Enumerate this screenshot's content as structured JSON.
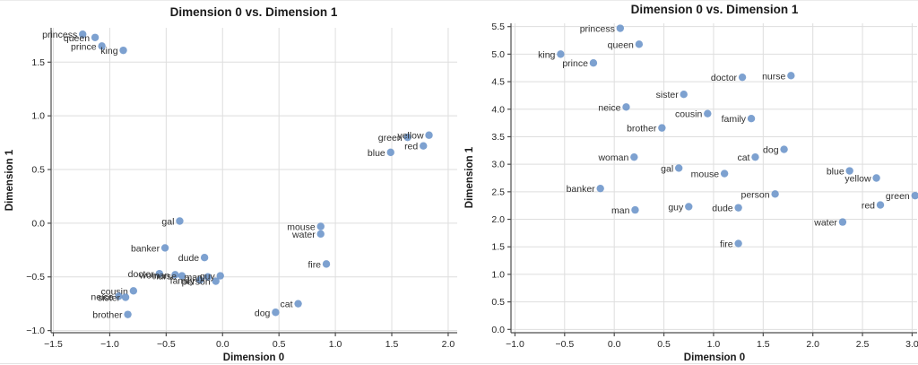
{
  "figure": {
    "background": "#ffffff",
    "description": "Two scatter plots of word embeddings projected onto two dimensions"
  },
  "chart_data": [
    {
      "type": "scatter",
      "title": "Dimension 0 vs. Dimension 1",
      "xlabel": "Dimension 0",
      "ylabel": "Dimension 1",
      "xlim": [
        -1.52,
        2.08
      ],
      "ylim": [
        -1.02,
        1.82
      ],
      "xticks": [
        -1.5,
        -1.0,
        -0.5,
        0.0,
        0.5,
        1.0,
        1.5,
        2.0
      ],
      "yticks": [
        -1.0,
        -0.5,
        0.0,
        0.5,
        1.0,
        1.5
      ],
      "grid": true,
      "legend_position": "none",
      "marker_color": "#6b94c9",
      "grid_color": "#dedede",
      "spine_color": "#4d4d4d",
      "points": [
        {
          "label": "princess",
          "x": -1.24,
          "y": 1.76
        },
        {
          "label": "queen",
          "x": -1.13,
          "y": 1.73
        },
        {
          "label": "prince",
          "x": -1.07,
          "y": 1.65
        },
        {
          "label": "king",
          "x": -0.88,
          "y": 1.61
        },
        {
          "label": "green",
          "x": 1.64,
          "y": 0.8
        },
        {
          "label": "yellow",
          "x": 1.83,
          "y": 0.82
        },
        {
          "label": "red",
          "x": 1.78,
          "y": 0.72
        },
        {
          "label": "blue",
          "x": 1.49,
          "y": 0.66
        },
        {
          "label": "mouse",
          "x": 0.87,
          "y": -0.03
        },
        {
          "label": "water",
          "x": 0.87,
          "y": -0.1
        },
        {
          "label": "fire",
          "x": 0.92,
          "y": -0.38
        },
        {
          "label": "gal",
          "x": -0.38,
          "y": 0.02
        },
        {
          "label": "banker",
          "x": -0.51,
          "y": -0.23
        },
        {
          "label": "dude",
          "x": -0.16,
          "y": -0.32
        },
        {
          "label": "doctor",
          "x": -0.56,
          "y": -0.47
        },
        {
          "label": "woman",
          "x": -0.42,
          "y": -0.48
        },
        {
          "label": "nurse",
          "x": -0.36,
          "y": -0.49
        },
        {
          "label": "family",
          "x": -0.2,
          "y": -0.53
        },
        {
          "label": "man",
          "x": -0.13,
          "y": -0.5
        },
        {
          "label": "person",
          "x": -0.06,
          "y": -0.54
        },
        {
          "label": "guy",
          "x": -0.02,
          "y": -0.49
        },
        {
          "label": "cousin",
          "x": -0.79,
          "y": -0.63
        },
        {
          "label": "neice",
          "x": -0.92,
          "y": -0.68
        },
        {
          "label": "sister",
          "x": -0.86,
          "y": -0.69
        },
        {
          "label": "brother",
          "x": -0.84,
          "y": -0.85
        },
        {
          "label": "dog",
          "x": 0.47,
          "y": -0.83
        },
        {
          "label": "cat",
          "x": 0.67,
          "y": -0.75
        }
      ]
    },
    {
      "type": "scatter",
      "title": "Dimension 0 vs. Dimension 1",
      "xlabel": "Dimension 0",
      "ylabel": "Dimension 1",
      "xlim": [
        -1.04,
        3.05
      ],
      "ylim": [
        -0.06,
        5.56
      ],
      "xticks": [
        -1.0,
        -0.5,
        0.0,
        0.5,
        1.0,
        1.5,
        2.0,
        2.5,
        3.0
      ],
      "yticks": [
        0.0,
        0.5,
        1.0,
        1.5,
        2.0,
        2.5,
        3.0,
        3.5,
        4.0,
        4.5,
        5.0,
        5.5
      ],
      "grid": true,
      "legend_position": "none",
      "marker_color": "#6b94c9",
      "grid_color": "#dedede",
      "spine_color": "#4d4d4d",
      "points": [
        {
          "label": "princess",
          "x": 0.06,
          "y": 5.47
        },
        {
          "label": "queen",
          "x": 0.25,
          "y": 5.18
        },
        {
          "label": "king",
          "x": -0.54,
          "y": 5.0
        },
        {
          "label": "prince",
          "x": -0.21,
          "y": 4.84
        },
        {
          "label": "nurse",
          "x": 1.78,
          "y": 4.61
        },
        {
          "label": "doctor",
          "x": 1.29,
          "y": 4.58
        },
        {
          "label": "sister",
          "x": 0.7,
          "y": 4.27
        },
        {
          "label": "neice",
          "x": 0.12,
          "y": 4.04
        },
        {
          "label": "cousin",
          "x": 0.94,
          "y": 3.92
        },
        {
          "label": "family",
          "x": 1.38,
          "y": 3.83
        },
        {
          "label": "brother",
          "x": 0.48,
          "y": 3.66
        },
        {
          "label": "dog",
          "x": 1.71,
          "y": 3.27
        },
        {
          "label": "woman",
          "x": 0.2,
          "y": 3.13
        },
        {
          "label": "cat",
          "x": 1.42,
          "y": 3.13
        },
        {
          "label": "gal",
          "x": 0.65,
          "y": 2.93
        },
        {
          "label": "blue",
          "x": 2.37,
          "y": 2.88
        },
        {
          "label": "mouse",
          "x": 1.11,
          "y": 2.83
        },
        {
          "label": "yellow",
          "x": 2.64,
          "y": 2.75
        },
        {
          "label": "banker",
          "x": -0.14,
          "y": 2.56
        },
        {
          "label": "person",
          "x": 1.62,
          "y": 2.46
        },
        {
          "label": "green",
          "x": 3.03,
          "y": 2.43
        },
        {
          "label": "red",
          "x": 2.68,
          "y": 2.26
        },
        {
          "label": "guy",
          "x": 0.75,
          "y": 2.23
        },
        {
          "label": "dude",
          "x": 1.25,
          "y": 2.21
        },
        {
          "label": "man",
          "x": 0.21,
          "y": 2.17
        },
        {
          "label": "water",
          "x": 2.3,
          "y": 1.95
        },
        {
          "label": "fire",
          "x": 1.25,
          "y": 1.56
        }
      ]
    }
  ]
}
